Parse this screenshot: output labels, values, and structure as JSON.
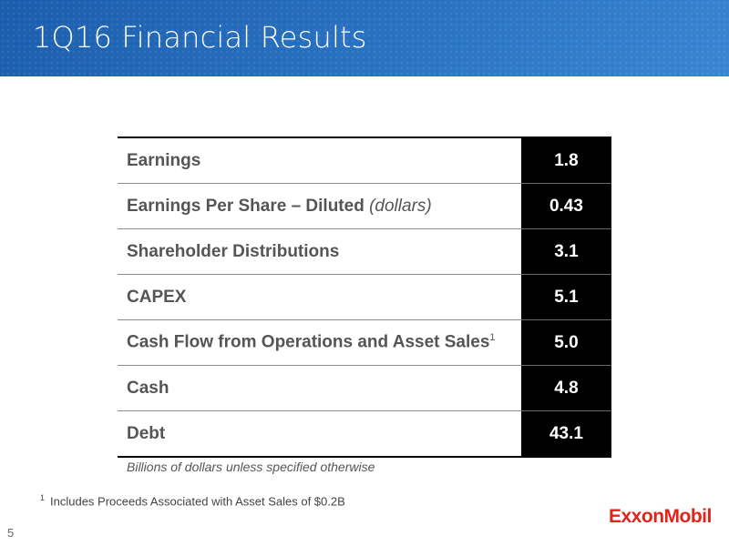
{
  "header": {
    "title": "1Q16 Financial Results"
  },
  "table": {
    "rows": [
      {
        "label": "Earnings",
        "qualifier": "",
        "footnote_ref": "",
        "value": "1.8"
      },
      {
        "label": "Earnings Per Share – Diluted ",
        "qualifier": "(dollars)",
        "footnote_ref": "",
        "value": "0.43"
      },
      {
        "label": "Shareholder Distributions",
        "qualifier": "",
        "footnote_ref": "",
        "value": "3.1"
      },
      {
        "label": "CAPEX",
        "qualifier": "",
        "footnote_ref": "",
        "value": "5.1"
      },
      {
        "label": "Cash Flow from Operations and Asset Sales",
        "qualifier": "",
        "footnote_ref": "1",
        "value": "5.0"
      },
      {
        "label": "Cash",
        "qualifier": "",
        "footnote_ref": "",
        "value": "4.8"
      },
      {
        "label": "Debt",
        "qualifier": "",
        "footnote_ref": "",
        "value": "43.1"
      }
    ]
  },
  "units_note": "Billions of dollars unless specified otherwise",
  "footnote": {
    "marker": "1",
    "text": "Includes Proceeds Associated with Asset Sales of $0.2B"
  },
  "page_number": "5",
  "logo": {
    "text": "ExxonMobil",
    "color": "#e2231a"
  },
  "colors": {
    "header_blue": "#2a73c2",
    "value_column": "#000000",
    "label_text": "#555555"
  }
}
